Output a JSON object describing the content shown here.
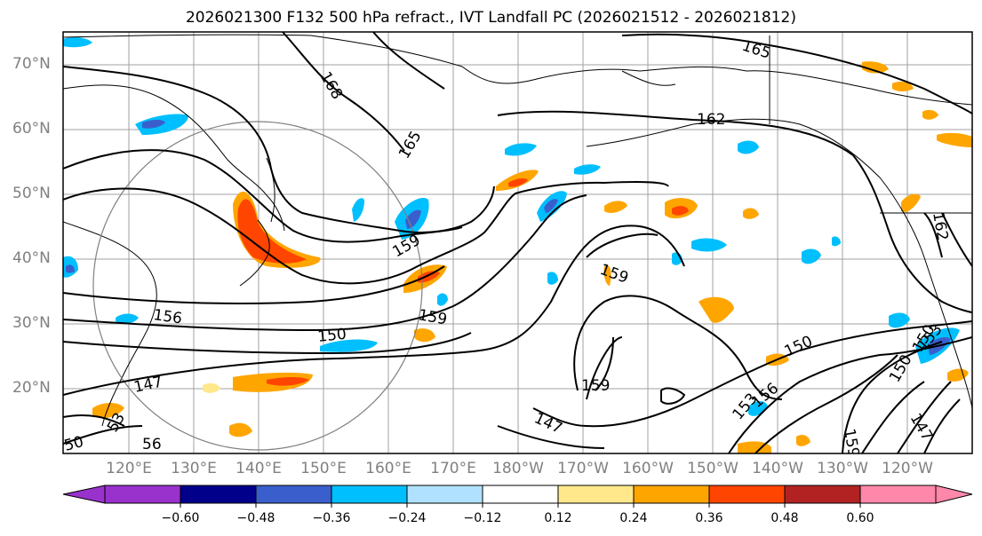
{
  "title": "2026021300 F132 500 hPa refract., IVT Landfall PC (2026021512 - 2026021812)",
  "lat_labels": [
    "70°N",
    "60°N",
    "50°N",
    "40°N",
    "30°N",
    "20°N"
  ],
  "lon_labels": [
    "120°E",
    "130°E",
    "140°E",
    "150°E",
    "160°E",
    "170°E",
    "180°W",
    "170°W",
    "160°W",
    "150°W",
    "140°W",
    "130°W",
    "120°W"
  ],
  "contour_labels": [
    "165",
    "168",
    "162",
    "165",
    "159",
    "159",
    "159",
    "159",
    "156",
    "150",
    "147",
    "150",
    "150",
    "153",
    "156",
    "159",
    "147",
    "150",
    "147",
    "153",
    "162",
    "50",
    "53",
    "56"
  ],
  "colorbar": {
    "ticks": [
      "−0.60",
      "−0.48",
      "−0.36",
      "−0.24",
      "−0.12",
      "0.12",
      "0.24",
      "0.36",
      "0.48",
      "0.60"
    ],
    "colors": [
      "#9932cc",
      "#00008b",
      "#3a5fcd",
      "#00bfff",
      "#b0e2ff",
      "#ffffff",
      "#ffe88c",
      "#ffa500",
      "#ff4500",
      "#b22222",
      "#ff88aa"
    ]
  }
}
